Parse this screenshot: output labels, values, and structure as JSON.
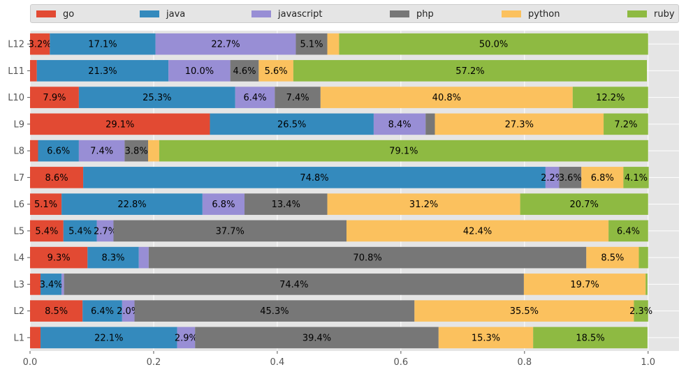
{
  "chart_data": {
    "type": "bar",
    "orientation": "horizontal",
    "stacked": true,
    "normalized": true,
    "categories": [
      "L1",
      "L2",
      "L3",
      "L4",
      "L5",
      "L6",
      "L7",
      "L8",
      "L9",
      "L10",
      "L11",
      "L12"
    ],
    "series": [
      {
        "name": "go",
        "color": "#E24A33",
        "values": [
          0.017,
          0.085,
          0.017,
          0.093,
          0.054,
          0.051,
          0.086,
          0.013,
          0.291,
          0.079,
          0.011,
          0.032
        ]
      },
      {
        "name": "java",
        "color": "#348ABD",
        "values": [
          0.221,
          0.064,
          0.034,
          0.083,
          0.054,
          0.228,
          0.748,
          0.066,
          0.265,
          0.253,
          0.213,
          0.171
        ]
      },
      {
        "name": "javascript",
        "color": "#988ED5",
        "values": [
          0.029,
          0.02,
          0.004,
          0.016,
          0.027,
          0.068,
          0.022,
          0.074,
          0.084,
          0.064,
          0.1,
          0.227
        ]
      },
      {
        "name": "php",
        "color": "#777777",
        "values": [
          0.394,
          0.453,
          0.744,
          0.708,
          0.377,
          0.134,
          0.036,
          0.038,
          0.015,
          0.074,
          0.046,
          0.051
        ]
      },
      {
        "name": "python",
        "color": "#FBC15E",
        "values": [
          0.153,
          0.355,
          0.197,
          0.085,
          0.424,
          0.312,
          0.068,
          0.018,
          0.273,
          0.408,
          0.056,
          0.019
        ]
      },
      {
        "name": "ruby",
        "color": "#8EBA42",
        "values": [
          0.185,
          0.023,
          0.003,
          0.015,
          0.064,
          0.207,
          0.041,
          0.791,
          0.072,
          0.122,
          0.572,
          0.5
        ]
      }
    ],
    "xlim": [
      0,
      1.05
    ],
    "xticks": [
      "0.0",
      "0.2",
      "0.4",
      "0.6",
      "0.8",
      "1.0"
    ],
    "label_threshold": 0.02,
    "grid": true,
    "legend_position": "top",
    "xlabel": "",
    "ylabel": "",
    "title": ""
  }
}
